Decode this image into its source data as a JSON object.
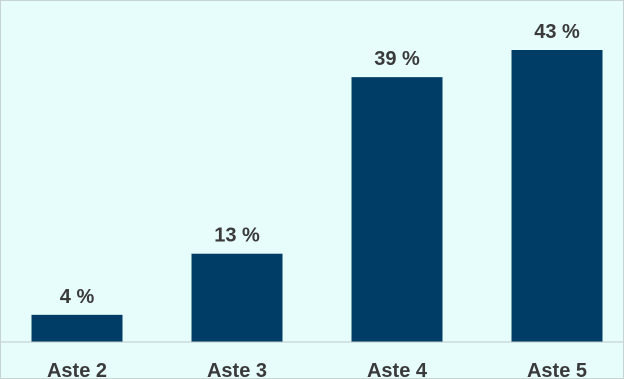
{
  "chart_data": {
    "type": "bar",
    "categories": [
      "Aste 2",
      "Aste 3",
      "Aste 4",
      "Aste 5"
    ],
    "values": [
      4,
      13,
      39,
      43
    ],
    "data_labels": [
      "4 %",
      "13 %",
      "39 %",
      "43 %"
    ],
    "title": "",
    "xlabel": "",
    "ylabel": "",
    "ylim": [
      0,
      43
    ],
    "grid": false,
    "legend": "none",
    "bar_color": "#003d66",
    "background_color": "#e6fdfb"
  }
}
